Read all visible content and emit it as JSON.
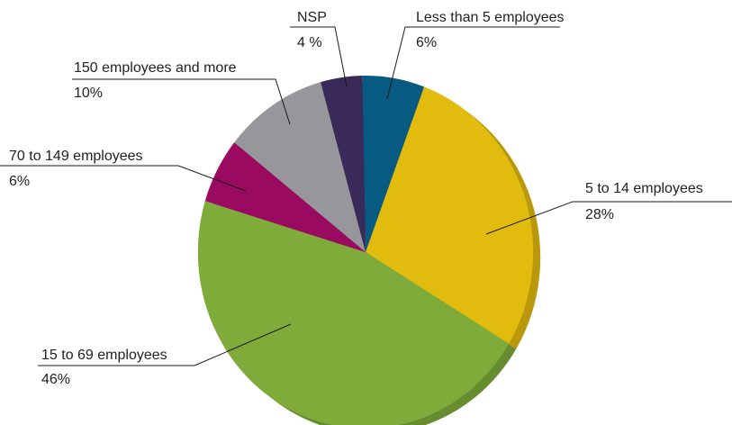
{
  "chart_data": {
    "type": "pie",
    "title": "",
    "legend": "none",
    "slices": [
      {
        "label": "Less than 5 employees",
        "value": 6,
        "value_label": "6%",
        "color": "#085a82"
      },
      {
        "label": "5 to 14 employees",
        "value": 28,
        "value_label": "28%",
        "color": "#e1bb0e"
      },
      {
        "label": "15 to 69 employees",
        "value": 46,
        "value_label": "46%",
        "color": "#7eab3a"
      },
      {
        "label": "70 to 149 employees",
        "value": 6,
        "value_label": "6%",
        "color": "#9a0a60"
      },
      {
        "label": "150 employees and more",
        "value": 10,
        "value_label": "10%",
        "color": "#97969b"
      },
      {
        "label": "NSP",
        "value": 4,
        "value_label": "4 %",
        "color": "#3a2a5a"
      }
    ]
  }
}
